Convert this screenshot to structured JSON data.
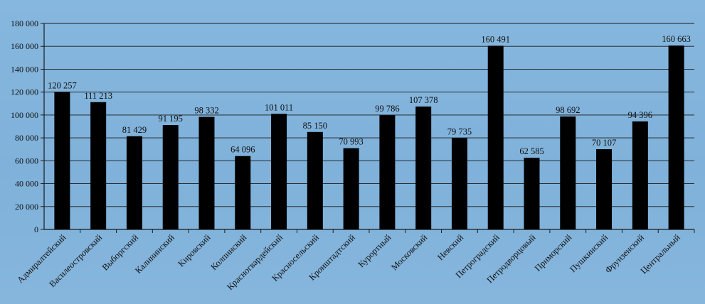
{
  "chart_data": {
    "type": "bar",
    "categories": [
      "Адмиралтейский",
      "Василеостровский",
      "Выборгский",
      "Калининский",
      "Кировский",
      "Колпинский",
      "Красногвардейский",
      "Красносельский",
      "Кронштадтский",
      "Курортный",
      "Московский",
      "Невский",
      "Петроградский",
      "Петродворцовый",
      "Приморский",
      "Пушкинский",
      "Фрунзенский",
      "Центральный"
    ],
    "values": [
      120257,
      111213,
      81429,
      91195,
      98332,
      64096,
      101011,
      85150,
      70993,
      99786,
      107378,
      79735,
      160491,
      62585,
      98692,
      70107,
      94396,
      160663
    ],
    "value_labels": [
      "120 257",
      "111 213",
      "81 429",
      "91 195",
      "98 332",
      "64 096",
      "101 011",
      "85 150",
      "70 993",
      "99 786",
      "107 378",
      "79 735",
      "160 491",
      "62 585",
      "98 692",
      "70 107",
      "94 396",
      "160 663"
    ],
    "y_ticks": [
      0,
      20000,
      40000,
      60000,
      80000,
      100000,
      120000,
      140000,
      160000,
      180000
    ],
    "y_tick_labels": [
      "0",
      "20 000",
      "40 000",
      "60 000",
      "80 000",
      "100 000",
      "120 000",
      "140 000",
      "160 000",
      "180 000"
    ],
    "ylim": [
      0,
      180000
    ],
    "title": "",
    "xlabel": "",
    "ylabel": "",
    "grid": true,
    "legend": "none",
    "colors": {
      "bar": "#000000",
      "grid": "#1a1a1a",
      "axis": "#1a1a1a",
      "background": "#84b4dc"
    }
  }
}
